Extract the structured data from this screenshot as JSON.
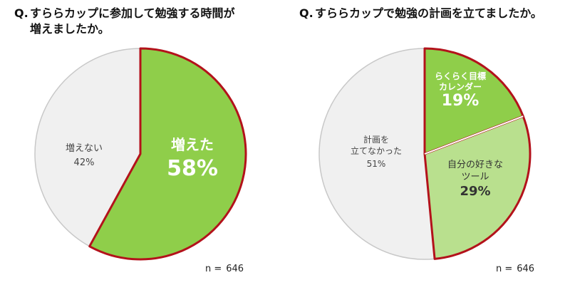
{
  "n_prefix": "n =",
  "chart_data": [
    {
      "type": "pie",
      "title_q": "Q.",
      "title_line1": "すららカップに参加して勉強する時間が",
      "title_line2": "増えましたか。",
      "slices": [
        {
          "label": "増えた",
          "value": 58,
          "value_text": "58%",
          "color": "#8fce4a",
          "border": "#b3121b",
          "highlight": true
        },
        {
          "label": "増えない",
          "value": 42,
          "value_text": "42%",
          "color": "#f0f0f0",
          "border": "#c8c8c8",
          "highlight": false
        }
      ],
      "n": "646"
    },
    {
      "type": "pie",
      "title_q": "Q.",
      "title_line1": "すららカップで勉強の計画を立てましたか。",
      "title_line2": "",
      "slices": [
        {
          "label": "らくらく目標\nカレンダー",
          "value": 19,
          "value_text": "19%",
          "color": "#8fce4a",
          "border": "#b3121b",
          "highlight": true
        },
        {
          "label": "自分の好きな\nツール",
          "value": 29,
          "value_text": "29%",
          "color": "#b9e08e",
          "border": "#b3121b",
          "highlight": true
        },
        {
          "label": "計画を\n立てなかった",
          "value": 51,
          "value_text": "51%",
          "color": "#f0f0f0",
          "border": "#c8c8c8",
          "highlight": false
        }
      ],
      "n": "646"
    }
  ]
}
